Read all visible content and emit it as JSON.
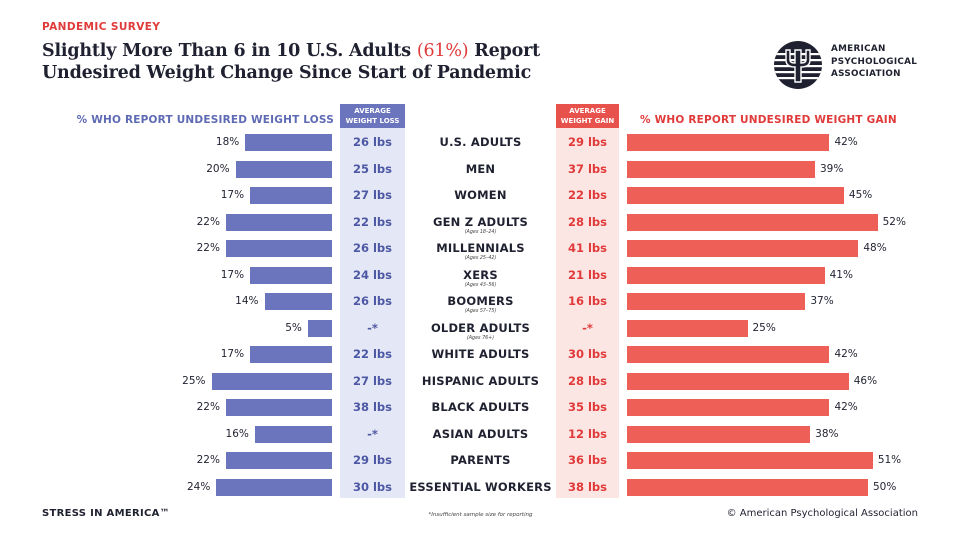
{
  "header": {
    "eyebrow": "PANDEMIC SURVEY",
    "title_part1": "Slightly More Than 6 in 10 U.S. Adults ",
    "title_highlight": "(61%)",
    "title_part2": " Report Undesired Weight Change Since Start of Pandemic"
  },
  "logo": {
    "line1": "AMERICAN",
    "line2": "PSYCHOLOGICAL",
    "line3": "ASSOCIATION"
  },
  "colors": {
    "loss": "#6b75bd",
    "gain": "#ee5f58",
    "accent_red": "#e03a3a",
    "text_dark": "#1f2130"
  },
  "chart_data": {
    "type": "bar",
    "orientation": "horizontal-diverging",
    "left_header": "% WHO REPORT UNDESIRED WEIGHT LOSS",
    "right_header": "% WHO REPORT UNDESIRED WEIGHT GAIN",
    "loss_avg_header": "AVERAGE WEIGHT LOSS",
    "gain_avg_header": "AVERAGE WEIGHT GAIN",
    "rows": [
      {
        "category": "U.S. ADULTS",
        "sub": "",
        "loss_pct": 18,
        "loss_pct_label": "18%",
        "loss_avg": "26 lbs",
        "gain_avg": "29 lbs",
        "gain_pct": 42,
        "gain_pct_label": "42%"
      },
      {
        "category": "MEN",
        "sub": "",
        "loss_pct": 20,
        "loss_pct_label": "20%",
        "loss_avg": "25 lbs",
        "gain_avg": "37 lbs",
        "gain_pct": 39,
        "gain_pct_label": "39%"
      },
      {
        "category": "WOMEN",
        "sub": "",
        "loss_pct": 17,
        "loss_pct_label": "17%",
        "loss_avg": "27 lbs",
        "gain_avg": "22 lbs",
        "gain_pct": 45,
        "gain_pct_label": "45%"
      },
      {
        "category": "GEN Z ADULTS",
        "sub": "(Ages 18–24)",
        "loss_pct": 22,
        "loss_pct_label": "22%",
        "loss_avg": "22 lbs",
        "gain_avg": "28 lbs",
        "gain_pct": 52,
        "gain_pct_label": "52%"
      },
      {
        "category": "MILLENNIALS",
        "sub": "(Ages 25–42)",
        "loss_pct": 22,
        "loss_pct_label": "22%",
        "loss_avg": "26 lbs",
        "gain_avg": "41 lbs",
        "gain_pct": 48,
        "gain_pct_label": "48%"
      },
      {
        "category": "XERS",
        "sub": "(Ages 43–56)",
        "loss_pct": 17,
        "loss_pct_label": "17%",
        "loss_avg": "24 lbs",
        "gain_avg": "21 lbs",
        "gain_pct": 41,
        "gain_pct_label": "41%"
      },
      {
        "category": "BOOMERS",
        "sub": "(Ages 57–75)",
        "loss_pct": 14,
        "loss_pct_label": "14%",
        "loss_avg": "26 lbs",
        "gain_avg": "16 lbs",
        "gain_pct": 37,
        "gain_pct_label": "37%"
      },
      {
        "category": "OLDER ADULTS",
        "sub": "(Ages 76+)",
        "loss_pct": 5,
        "loss_pct_label": "5%",
        "loss_avg": "-*",
        "gain_avg": "-*",
        "gain_pct": 25,
        "gain_pct_label": "25%"
      },
      {
        "category": "WHITE ADULTS",
        "sub": "",
        "loss_pct": 17,
        "loss_pct_label": "17%",
        "loss_avg": "22 lbs",
        "gain_avg": "30 lbs",
        "gain_pct": 42,
        "gain_pct_label": "42%"
      },
      {
        "category": "HISPANIC ADULTS",
        "sub": "",
        "loss_pct": 25,
        "loss_pct_label": "25%",
        "loss_avg": "27 lbs",
        "gain_avg": "28 lbs",
        "gain_pct": 46,
        "gain_pct_label": "46%"
      },
      {
        "category": "BLACK ADULTS",
        "sub": "",
        "loss_pct": 22,
        "loss_pct_label": "22%",
        "loss_avg": "38 lbs",
        "gain_avg": "35 lbs",
        "gain_pct": 42,
        "gain_pct_label": "42%"
      },
      {
        "category": "ASIAN ADULTS",
        "sub": "",
        "loss_pct": 16,
        "loss_pct_label": "16%",
        "loss_avg": "-*",
        "gain_avg": "12 lbs",
        "gain_pct": 38,
        "gain_pct_label": "38%"
      },
      {
        "category": "PARENTS",
        "sub": "",
        "loss_pct": 22,
        "loss_pct_label": "22%",
        "loss_avg": "29 lbs",
        "gain_avg": "36 lbs",
        "gain_pct": 51,
        "gain_pct_label": "51%"
      },
      {
        "category": "ESSENTIAL WORKERS",
        "sub": "",
        "loss_pct": 24,
        "loss_pct_label": "24%",
        "loss_avg": "30 lbs",
        "gain_avg": "38 lbs",
        "gain_pct": 50,
        "gain_pct_label": "50%"
      }
    ]
  },
  "footer": {
    "left": "STRESS IN AMERICA™",
    "note": "*Insufficient sample size for reporting",
    "right": "© American Psychological Association"
  }
}
